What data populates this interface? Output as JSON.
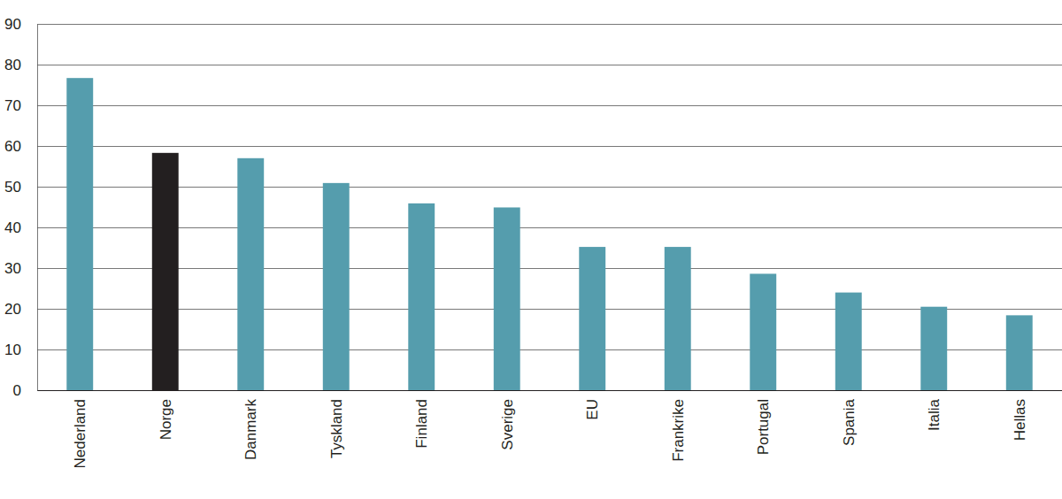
{
  "chart_data": {
    "type": "bar",
    "categories": [
      "Nederland",
      "Norge",
      "Danmark",
      "Tyskland",
      "Finland",
      "Sverige",
      "EU",
      "Frankrike",
      "Portugal",
      "Spania",
      "Italia",
      "Hellas"
    ],
    "values": [
      76.7,
      58.3,
      57,
      50.9,
      45.9,
      44.9,
      35.2,
      35.2,
      28.6,
      24,
      20.5,
      18.4
    ],
    "colors": [
      "#559dad",
      "#231f20",
      "#559dad",
      "#559dad",
      "#559dad",
      "#559dad",
      "#559dad",
      "#559dad",
      "#559dad",
      "#559dad",
      "#559dad",
      "#559dad"
    ],
    "ylim": [
      0,
      90
    ],
    "yticks": [
      0,
      10,
      20,
      30,
      40,
      50,
      60,
      70,
      80,
      90
    ],
    "grid": true
  }
}
